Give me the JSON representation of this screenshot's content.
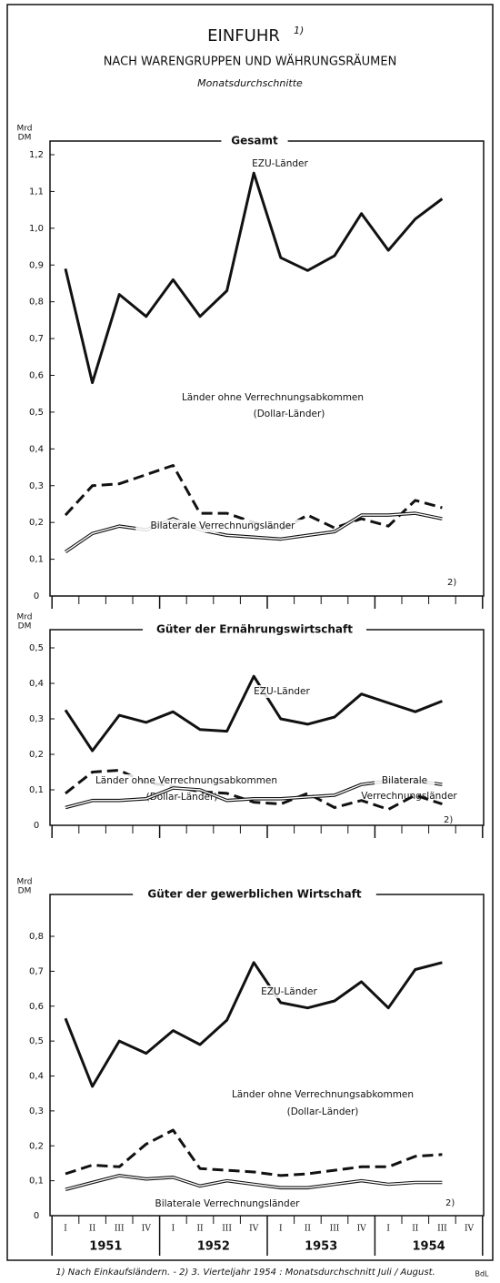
{
  "header": {
    "title": "EINFUHR",
    "title_note": "1)",
    "subtitle": "NACH WARENGRUPPEN UND WÄHRUNGSRÄUMEN",
    "note": "Monatsdurchschnitte"
  },
  "chart_data": [
    {
      "type": "line",
      "title": "Gesamt",
      "ylabel": [
        "Mrd",
        "DM"
      ],
      "annotation": "2)",
      "ylim": [
        0,
        1.2
      ],
      "yticks": [
        0,
        {
          "value": 0.1,
          "label": "0,1"
        },
        {
          "value": 0.2,
          "label": "0,2"
        },
        {
          "value": 0.3,
          "label": "0,3"
        },
        {
          "value": 0.4,
          "label": "0,4"
        },
        {
          "value": 0.5,
          "label": "0,5"
        },
        {
          "value": 0.6,
          "label": "0,6"
        },
        {
          "value": 0.7,
          "label": "0,7"
        },
        {
          "value": 0.8,
          "label": "0,8"
        },
        {
          "value": 0.9,
          "label": "0,9"
        },
        {
          "value": 1.0,
          "label": "1,0"
        },
        {
          "value": 1.1,
          "label": "1,1"
        },
        {
          "value": 1.2,
          "label": "1,2"
        }
      ],
      "series": [
        {
          "name": "EZU-Länder",
          "color": "#111111",
          "style": "solid",
          "values": [
            0.89,
            0.58,
            0.82,
            0.76,
            0.86,
            0.76,
            0.83,
            1.15,
            0.92,
            0.885,
            0.925,
            1.04,
            0.94,
            1.025,
            1.08,
            null
          ]
        },
        {
          "name": "Länder ohne Verrechnungsabkommen",
          "name_line2": "(Dollar-Länder)",
          "color": "#111111",
          "style": "dashed",
          "values": [
            0.22,
            0.3,
            0.305,
            0.33,
            0.355,
            0.225,
            0.225,
            0.2,
            0.18,
            0.22,
            0.185,
            0.21,
            0.19,
            0.26,
            0.24,
            null
          ]
        },
        {
          "name": "Bilaterale Verrechnungsländer",
          "color": "#111111",
          "style": "double",
          "values": [
            0.12,
            0.17,
            0.19,
            0.18,
            0.21,
            0.18,
            0.165,
            0.16,
            0.155,
            0.165,
            0.175,
            0.22,
            0.22,
            0.225,
            0.21,
            null
          ]
        }
      ]
    },
    {
      "type": "line",
      "title": "Güter der Ernährungswirtschaft",
      "ylabel": [
        "Mrd",
        "DM"
      ],
      "annotation": "2)",
      "ylim": [
        0,
        0.5
      ],
      "yticks": [
        0,
        {
          "value": 0.1,
          "label": "0,1"
        },
        {
          "value": 0.2,
          "label": "0,2"
        },
        {
          "value": 0.3,
          "label": "0,3"
        },
        {
          "value": 0.4,
          "label": "0,4"
        },
        {
          "value": 0.5,
          "label": "0,5"
        }
      ],
      "series": [
        {
          "name": "EZU-Länder",
          "color": "#111111",
          "style": "solid",
          "values": [
            0.325,
            0.21,
            0.31,
            0.29,
            0.32,
            0.27,
            0.265,
            0.42,
            0.3,
            0.285,
            0.305,
            0.37,
            0.345,
            0.32,
            0.35,
            null
          ]
        },
        {
          "name": "Länder ohne Verrechnungsabkommen",
          "name_line2": "(Dollar-Länder)",
          "color": "#111111",
          "style": "dashed",
          "values": [
            0.09,
            0.15,
            0.155,
            0.12,
            0.11,
            0.095,
            0.09,
            0.065,
            0.06,
            0.09,
            0.05,
            0.07,
            0.045,
            0.085,
            0.06,
            null
          ]
        },
        {
          "name": "Bilaterale",
          "name_line2": "Verrechnungsländer",
          "color": "#111111",
          "style": "double",
          "values": [
            0.05,
            0.07,
            0.07,
            0.075,
            0.105,
            0.1,
            0.07,
            0.075,
            0.075,
            0.08,
            0.085,
            0.115,
            0.125,
            0.125,
            0.115,
            null
          ]
        }
      ]
    },
    {
      "type": "line",
      "title": "Güter der gewerblichen Wirtschaft",
      "ylabel": [
        "Mrd",
        "DM"
      ],
      "annotation": "2)",
      "ylim": [
        0,
        0.8
      ],
      "yticks": [
        0,
        {
          "value": 0.1,
          "label": "0,1"
        },
        {
          "value": 0.2,
          "label": "0,2"
        },
        {
          "value": 0.3,
          "label": "0,3"
        },
        {
          "value": 0.4,
          "label": "0,4"
        },
        {
          "value": 0.5,
          "label": "0,5"
        },
        {
          "value": 0.6,
          "label": "0,6"
        },
        {
          "value": 0.7,
          "label": "0,7"
        },
        {
          "value": 0.8,
          "label": "0,8"
        }
      ],
      "categories": [
        "I",
        "II",
        "III",
        "IV",
        "I",
        "II",
        "III",
        "IV",
        "I",
        "II",
        "III",
        "IV",
        "I",
        "II",
        "III",
        "IV"
      ],
      "year_labels": [
        "1951",
        "1952",
        "1953",
        "1954"
      ],
      "series": [
        {
          "name": "EZU-Länder",
          "color": "#111111",
          "style": "solid",
          "values": [
            0.565,
            0.37,
            0.5,
            0.465,
            0.53,
            0.49,
            0.56,
            0.725,
            0.61,
            0.595,
            0.615,
            0.67,
            0.595,
            0.705,
            0.725,
            null
          ]
        },
        {
          "name": "Länder ohne Verrechnungsabkommen",
          "name_line2": "(Dollar-Länder)",
          "color": "#111111",
          "style": "dashed",
          "values": [
            0.12,
            0.145,
            0.14,
            0.205,
            0.245,
            0.135,
            0.13,
            0.125,
            0.115,
            0.12,
            0.13,
            0.14,
            0.14,
            0.17,
            0.175,
            null
          ]
        },
        {
          "name": "Bilaterale Verrechnungsländer",
          "color": "#111111",
          "style": "double",
          "values": [
            0.075,
            0.095,
            0.115,
            0.105,
            0.11,
            0.085,
            0.1,
            0.09,
            0.08,
            0.08,
            0.09,
            0.1,
            0.09,
            0.095,
            0.095,
            null
          ]
        }
      ]
    }
  ],
  "footer": {
    "footnote": "1) Nach Einkaufsländern. - 2) 3. Vierteljahr 1954 : Monatsdurchschnitt Juli / August.",
    "credit": "BdL"
  }
}
